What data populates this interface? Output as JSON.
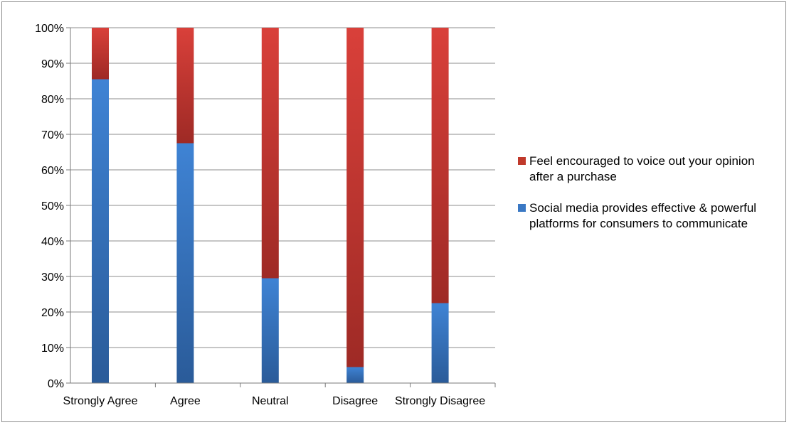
{
  "colors": {
    "series_red": "#c0392b",
    "series_blue": "#3a78c4",
    "grid": "#8c8c8c"
  },
  "chart_data": {
    "type": "bar",
    "stacked": true,
    "percent": true,
    "categories": [
      "Strongly Agree",
      "Agree",
      "Neutral",
      "Disagree",
      "Strongly Disagree"
    ],
    "series": [
      {
        "name": "Social media provides effective & powerful platforms for consumers to communicate",
        "color": "#3a78c4",
        "values": [
          85.5,
          67.5,
          29.5,
          4.5,
          22.5
        ]
      },
      {
        "name": "Feel encouraged to voice out your opinion after a purchase",
        "color": "#c0392b",
        "values": [
          14.5,
          32.5,
          70.5,
          95.5,
          77.5
        ]
      }
    ],
    "yticks": [
      "0%",
      "10%",
      "20%",
      "30%",
      "40%",
      "50%",
      "60%",
      "70%",
      "80%",
      "90%",
      "100%"
    ],
    "ylim": [
      0,
      100
    ],
    "grid": true,
    "legend_position": "right",
    "title": "",
    "xlabel": "",
    "ylabel": ""
  }
}
